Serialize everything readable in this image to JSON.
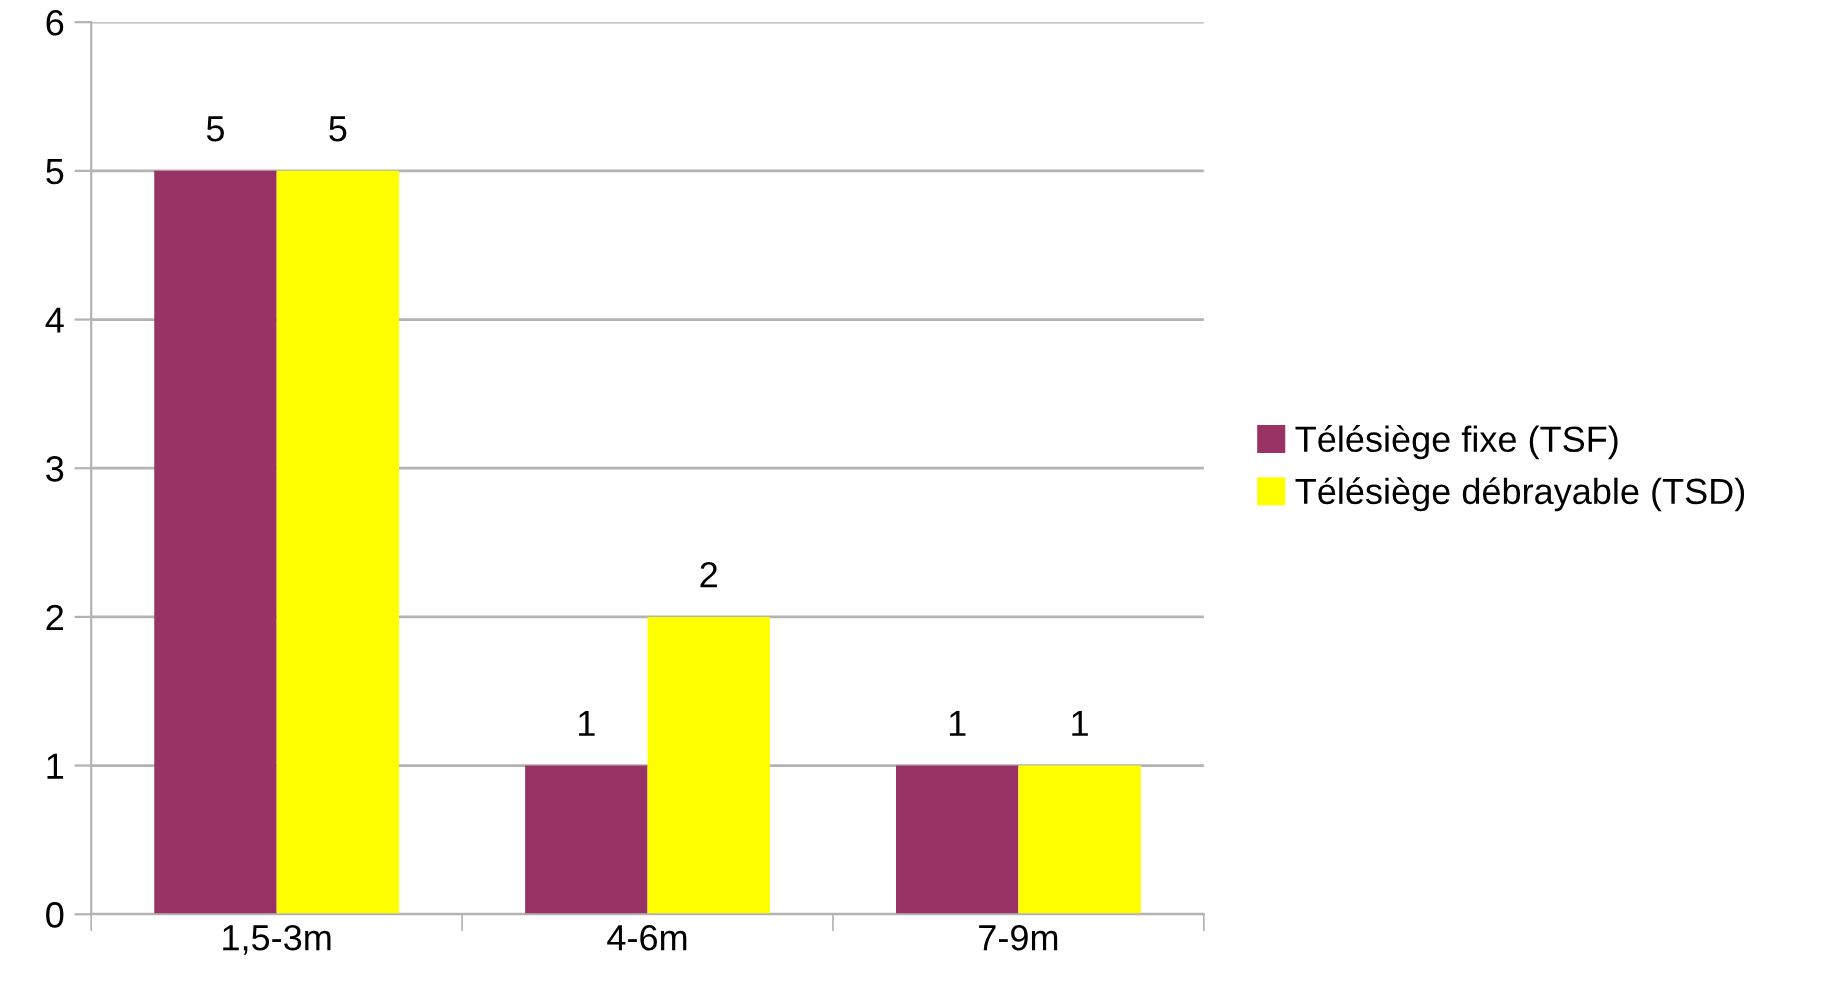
{
  "chart_data": {
    "type": "bar",
    "categories": [
      "1,5-3m",
      "4-6m",
      "7-9m"
    ],
    "series": [
      {
        "name": "Télésiège fixe (TSF)",
        "color": "#993366",
        "values": [
          5,
          1,
          1
        ]
      },
      {
        "name": "Télésiège débrayable (TSD)",
        "color": "#ffff00",
        "values": [
          5,
          2,
          1
        ]
      }
    ],
    "ylim": [
      0,
      6
    ],
    "yticks": [
      0,
      1,
      2,
      3,
      4,
      5,
      6
    ],
    "grid": "y",
    "legend": "right",
    "data_labels": true
  }
}
